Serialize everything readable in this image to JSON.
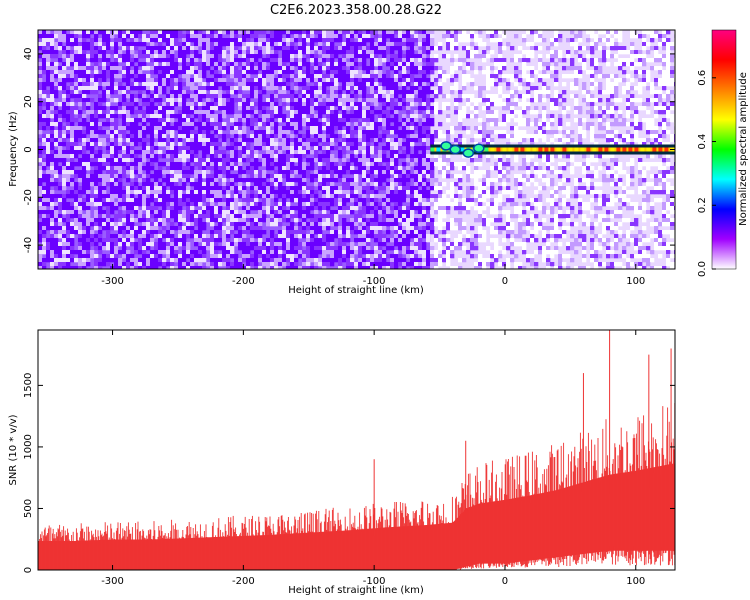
{
  "title": "C2E6.2023.358.00.28.G22",
  "spectrogram": {
    "type": "heatmap",
    "xlabel": "Height of straight line (km)",
    "ylabel": "Frequency (Hz)",
    "xlim": [
      -357,
      130
    ],
    "ylim": [
      -50,
      50
    ],
    "xticks": [
      -300,
      -200,
      -100,
      0,
      100
    ],
    "yticks": [
      -40,
      -20,
      0,
      20,
      40
    ],
    "boundary_x": -57,
    "signal_line": {
      "y": 0,
      "x_start": -57,
      "x_end": 130,
      "color_level": 0.65
    },
    "low_snr_region_color": "#6a00ff",
    "high_snr_region_color": "#e9d8ff"
  },
  "colorbar": {
    "label": "Normalized spectral amplitude",
    "range": [
      0.0,
      0.75
    ],
    "ticks": [
      0.0,
      0.2,
      0.4,
      0.6
    ],
    "tick_labels": [
      "0.0",
      "0.2",
      "0.4",
      "0.6"
    ],
    "colormap": [
      "#ffffff",
      "#a000ff",
      "#0000ff",
      "#00ffff",
      "#00ff00",
      "#ffff00",
      "#ff7f00",
      "#ff0000",
      "#ff0080"
    ]
  },
  "chart_data": {
    "type": "area",
    "title": "C2E6.2023.358.00.28.G22",
    "xlabel": "Height of straight line (km)",
    "ylabel": "SNR (10 * v/v)",
    "xlim": [
      -357,
      130
    ],
    "ylim": [
      0,
      1950
    ],
    "xticks": [
      -300,
      -200,
      -100,
      0,
      100
    ],
    "yticks": [
      0,
      500,
      1000,
      1500
    ],
    "series": [
      {
        "color": "#ee3333",
        "x": [
          -357,
          -330,
          -300,
          -270,
          -240,
          -210,
          -180,
          -150,
          -120,
          -90,
          -60,
          -40,
          -30,
          -20,
          0,
          20,
          40,
          60,
          80,
          100,
          130
        ],
        "upper": [
          380,
          380,
          400,
          400,
          420,
          440,
          460,
          490,
          520,
          560,
          590,
          620,
          800,
          870,
          920,
          980,
          1050,
          1150,
          1250,
          1300,
          1400
        ],
        "lower": [
          0,
          0,
          0,
          0,
          0,
          0,
          0,
          0,
          0,
          0,
          0,
          0,
          20,
          40,
          40,
          60,
          80,
          100,
          120,
          120,
          120
        ],
        "peaks": [
          [
            80,
            1950
          ],
          [
            110,
            1750
          ],
          [
            127,
            1800
          ],
          [
            60,
            1600
          ],
          [
            -30,
            1050
          ],
          [
            -100,
            900
          ]
        ]
      }
    ]
  }
}
